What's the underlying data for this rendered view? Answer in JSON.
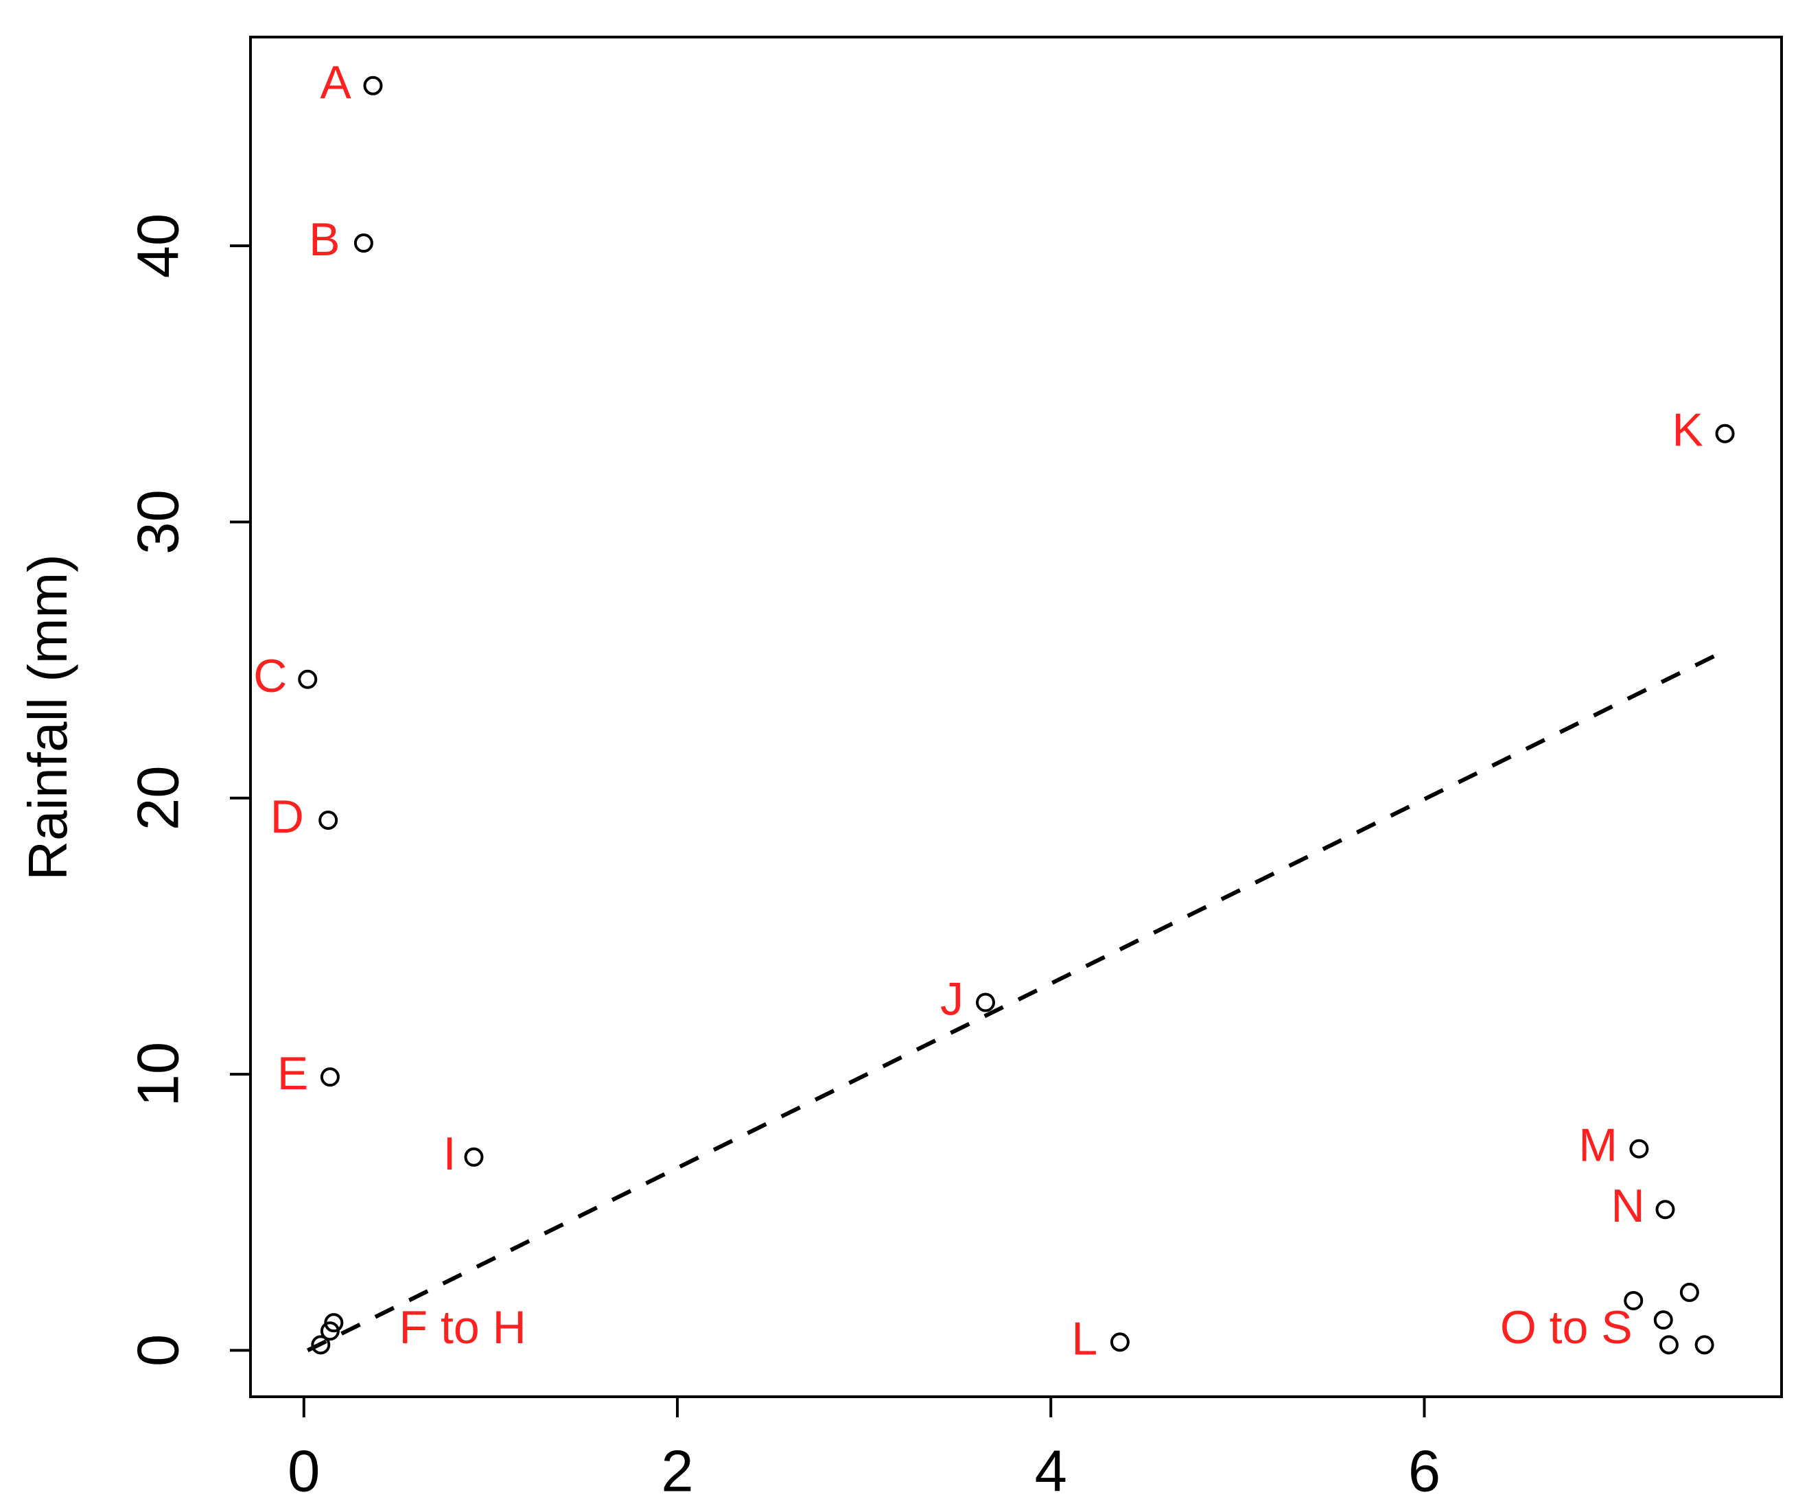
{
  "chart_data": {
    "type": "scatter",
    "y_label": "Rainfall (mm)",
    "x": [
      0.37,
      0.32,
      0.02,
      0.13,
      0.14,
      0.16,
      0.14,
      0.09,
      0.91,
      3.65,
      7.61,
      4.37,
      7.15,
      7.29,
      7.12,
      7.42,
      7.28,
      7.31,
      7.5
    ],
    "y": [
      45.8,
      40.1,
      24.3,
      19.2,
      9.9,
      1.0,
      0.7,
      0.2,
      7.0,
      12.6,
      33.2,
      0.3,
      7.3,
      5.1,
      1.8,
      2.1,
      1.1,
      0.2,
      0.2
    ],
    "color": "#000000",
    "fit_line": {
      "x": [
        0.02,
        7.63
      ],
      "y": [
        0,
        25.4
      ],
      "color": "#000000"
    },
    "annotation_color": "#ff2020",
    "annotations": [
      {
        "text": "A",
        "x": 0.17,
        "y": 45.8
      },
      {
        "text": "B",
        "x": 0.11,
        "y": 40.1
      },
      {
        "text": "C",
        "x": -0.18,
        "y": 24.3
      },
      {
        "text": "D",
        "x": -0.09,
        "y": 19.2
      },
      {
        "text": "E",
        "x": -0.06,
        "y": 9.9
      },
      {
        "text": "F to H",
        "x": 0.85,
        "y": 0.7
      },
      {
        "text": "I",
        "x": 0.78,
        "y": 7.0
      },
      {
        "text": "J",
        "x": 3.47,
        "y": 12.6
      },
      {
        "text": "K",
        "x": 7.41,
        "y": 33.2
      },
      {
        "text": "L",
        "x": 4.18,
        "y": 0.3
      },
      {
        "text": "M",
        "x": 6.93,
        "y": 7.3
      },
      {
        "text": "N",
        "x": 7.09,
        "y": 5.1
      },
      {
        "text": "O to S",
        "x": 6.76,
        "y": 0.7
      }
    ],
    "xlim": [
      -0.286,
      7.913
    ],
    "ylim": [
      -1.68,
      47.56
    ],
    "xticks": [
      0,
      2,
      4,
      6
    ],
    "yticks": [
      0,
      10,
      20,
      30,
      40
    ]
  }
}
